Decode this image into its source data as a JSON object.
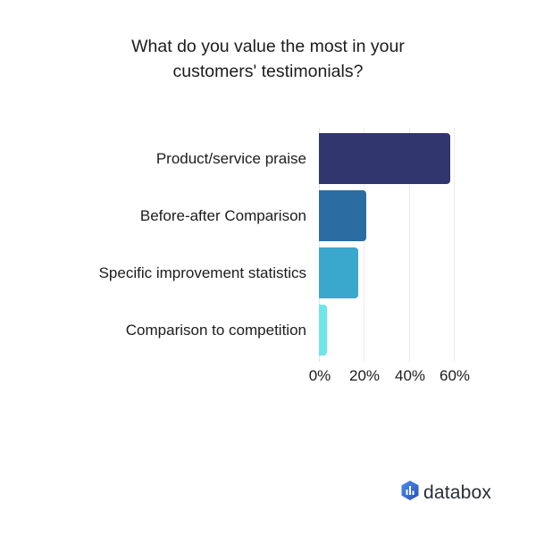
{
  "title": {
    "line1": "What do you value the most in your",
    "line2": "customers' testimonials?"
  },
  "chart_data": {
    "type": "bar",
    "orientation": "horizontal",
    "title": "What do you value the most in your customers' testimonials?",
    "categories": [
      "Product/service praise",
      "Before-after Comparison",
      "Specific improvement statistics",
      "Comparison to competition"
    ],
    "values": [
      58.6,
      21,
      17.4,
      3.5
    ],
    "colors": [
      "#31366e",
      "#2b6ca3",
      "#3aa8cc",
      "#6ee6e8"
    ],
    "xlabel": "",
    "ylabel": "",
    "xlim": [
      0,
      60
    ],
    "xticks": [
      "0%",
      "20%",
      "40%",
      "60%"
    ],
    "grid": true,
    "legend": "none"
  },
  "brand": {
    "name": "databox",
    "logo_icon": "databox-hexagon-bars-icon",
    "logo_color": "#3b6fd8"
  }
}
